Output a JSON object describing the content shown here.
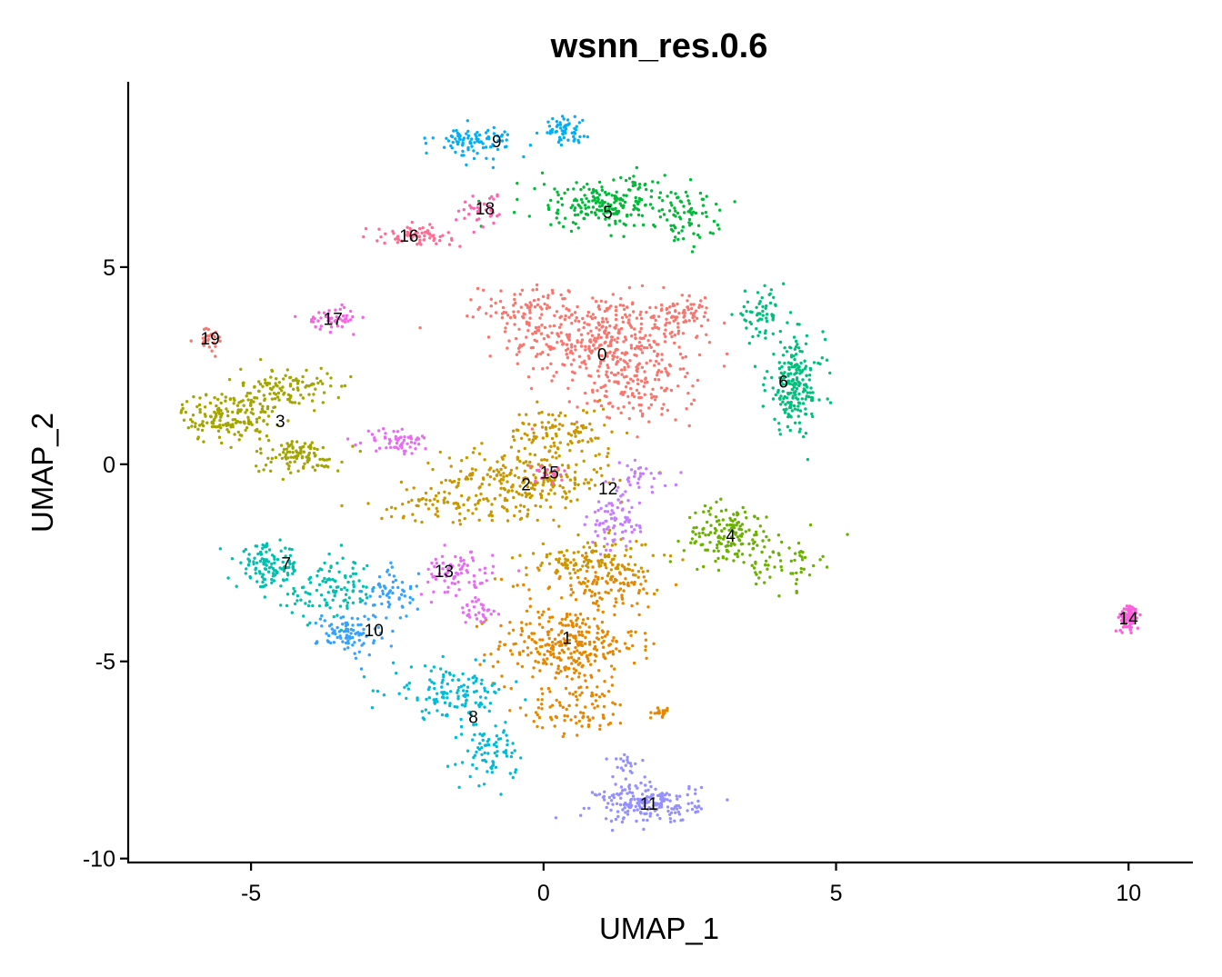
{
  "chart_data": {
    "type": "scatter",
    "title": "wsnn_res.0.6",
    "xlabel": "UMAP_1",
    "ylabel": "UMAP_2",
    "xlim": [
      -7.1,
      11.1
    ],
    "ylim": [
      -10.1,
      9.7
    ],
    "x_ticks": [
      -5,
      0,
      5,
      10
    ],
    "x_tick_labels": [
      "-5",
      "0",
      "5",
      "10"
    ],
    "y_ticks": [
      5,
      0,
      -5,
      -10
    ],
    "y_tick_labels": [
      "5",
      "0",
      "-5",
      "-10"
    ],
    "grid": false,
    "legend": "none",
    "clusters": [
      {
        "label": "0",
        "color": "#F8766D",
        "center": [
          1.0,
          2.8
        ],
        "blobs": [
          [
            1.0,
            3.2,
            1.4,
            1.0,
            380
          ],
          [
            2.4,
            3.8,
            0.45,
            0.35,
            60
          ],
          [
            1.6,
            1.9,
            0.9,
            0.8,
            140
          ],
          [
            -0.2,
            4.0,
            0.8,
            0.5,
            80
          ]
        ]
      },
      {
        "label": "1",
        "color": "#E58700",
        "center": [
          0.4,
          -4.4
        ],
        "blobs": [
          [
            0.4,
            -4.6,
            1.1,
            0.9,
            300
          ],
          [
            1.0,
            -3.0,
            1.0,
            0.6,
            120
          ],
          [
            0.6,
            -6.2,
            0.8,
            0.6,
            90
          ],
          [
            2.0,
            -6.3,
            0.15,
            0.1,
            20
          ]
        ]
      },
      {
        "label": "2",
        "color": "#C99800",
        "center": [
          -0.3,
          -0.5
        ],
        "blobs": [
          [
            -0.3,
            -0.4,
            1.3,
            0.8,
            260
          ],
          [
            0.8,
            -2.4,
            1.0,
            0.5,
            110
          ],
          [
            0.3,
            0.8,
            0.8,
            0.6,
            100
          ],
          [
            -1.8,
            -1.0,
            1.0,
            0.4,
            70
          ]
        ]
      },
      {
        "label": "3",
        "color": "#A3A500",
        "center": [
          -4.5,
          1.1
        ],
        "blobs": [
          [
            -5.4,
            1.2,
            0.7,
            0.6,
            160
          ],
          [
            -4.4,
            1.9,
            0.7,
            0.5,
            120
          ],
          [
            -4.2,
            0.2,
            0.7,
            0.4,
            100
          ]
        ]
      },
      {
        "label": "4",
        "color": "#6BB100",
        "center": [
          3.2,
          -1.8
        ],
        "blobs": [
          [
            3.2,
            -1.8,
            0.7,
            0.7,
            160
          ],
          [
            4.2,
            -2.5,
            0.5,
            0.6,
            50
          ]
        ]
      },
      {
        "label": "5",
        "color": "#00BA38",
        "center": [
          1.1,
          6.4
        ],
        "blobs": [
          [
            1.1,
            6.6,
            1.3,
            0.6,
            220
          ],
          [
            2.4,
            6.2,
            0.5,
            0.6,
            60
          ]
        ]
      },
      {
        "label": "6",
        "color": "#00BF7D",
        "center": [
          4.1,
          2.1
        ],
        "blobs": [
          [
            4.3,
            2.0,
            0.45,
            1.1,
            200
          ],
          [
            3.7,
            3.8,
            0.4,
            0.5,
            60
          ]
        ]
      },
      {
        "label": "7",
        "color": "#00C0AF",
        "center": [
          -4.4,
          -2.5
        ],
        "blobs": [
          [
            -4.7,
            -2.6,
            0.5,
            0.5,
            120
          ],
          [
            -3.6,
            -3.2,
            0.7,
            0.7,
            110
          ]
        ]
      },
      {
        "label": "8",
        "color": "#00BCD8",
        "center": [
          -1.2,
          -6.4
        ],
        "blobs": [
          [
            -1.6,
            -5.8,
            0.9,
            0.6,
            130
          ],
          [
            -0.9,
            -7.3,
            0.4,
            0.7,
            80
          ]
        ]
      },
      {
        "label": "9",
        "color": "#00B0F6",
        "center": [
          -0.8,
          8.2
        ],
        "blobs": [
          [
            -1.2,
            8.2,
            0.6,
            0.35,
            90
          ],
          [
            0.3,
            8.5,
            0.4,
            0.3,
            60
          ]
        ]
      },
      {
        "label": "10",
        "color": "#35A2FF",
        "center": [
          -2.9,
          -4.2
        ],
        "blobs": [
          [
            -3.3,
            -4.3,
            0.5,
            0.5,
            90
          ],
          [
            -2.6,
            -3.3,
            0.4,
            0.6,
            60
          ]
        ]
      },
      {
        "label": "11",
        "color": "#9590FF",
        "center": [
          1.8,
          -8.6
        ],
        "blobs": [
          [
            1.8,
            -8.6,
            0.8,
            0.45,
            200
          ],
          [
            1.4,
            -7.6,
            0.3,
            0.3,
            20
          ]
        ]
      },
      {
        "label": "12",
        "color": "#C77CFF",
        "center": [
          1.1,
          -0.6
        ],
        "blobs": [
          [
            1.2,
            -1.5,
            0.4,
            0.7,
            80
          ],
          [
            1.7,
            -0.3,
            0.4,
            0.3,
            30
          ]
        ]
      },
      {
        "label": "13",
        "color": "#E76BF3",
        "center": [
          -1.7,
          -2.7
        ],
        "blobs": [
          [
            -1.5,
            -2.8,
            0.6,
            0.5,
            80
          ],
          [
            -2.5,
            0.6,
            0.5,
            0.3,
            60
          ],
          [
            -1.1,
            -3.8,
            0.3,
            0.4,
            30
          ]
        ]
      },
      {
        "label": "14",
        "color": "#FA62DB",
        "center": [
          10.0,
          -3.9
        ],
        "blobs": [
          [
            10.0,
            -3.9,
            0.15,
            0.3,
            100
          ]
        ]
      },
      {
        "label": "15",
        "color": "#FF62BC",
        "center": [
          0.1,
          -0.2
        ],
        "blobs": [
          [
            0.1,
            -0.2,
            0.3,
            0.2,
            20
          ]
        ]
      },
      {
        "label": "16",
        "color": "#FF6C91",
        "center": [
          -2.3,
          5.8
        ],
        "blobs": [
          [
            -2.2,
            5.8,
            0.6,
            0.2,
            70
          ]
        ]
      },
      {
        "label": "17",
        "color": "#F564E3",
        "center": [
          -3.6,
          3.7
        ],
        "blobs": [
          [
            -3.6,
            3.7,
            0.4,
            0.25,
            50
          ]
        ]
      },
      {
        "label": "18",
        "color": "#FF64B0",
        "center": [
          -1.0,
          6.5
        ],
        "blobs": [
          [
            -1.0,
            6.5,
            0.4,
            0.4,
            40
          ]
        ]
      },
      {
        "label": "19",
        "color": "#F8766D",
        "center": [
          -5.7,
          3.2
        ],
        "blobs": [
          [
            -5.7,
            3.2,
            0.25,
            0.3,
            25
          ]
        ]
      }
    ]
  }
}
